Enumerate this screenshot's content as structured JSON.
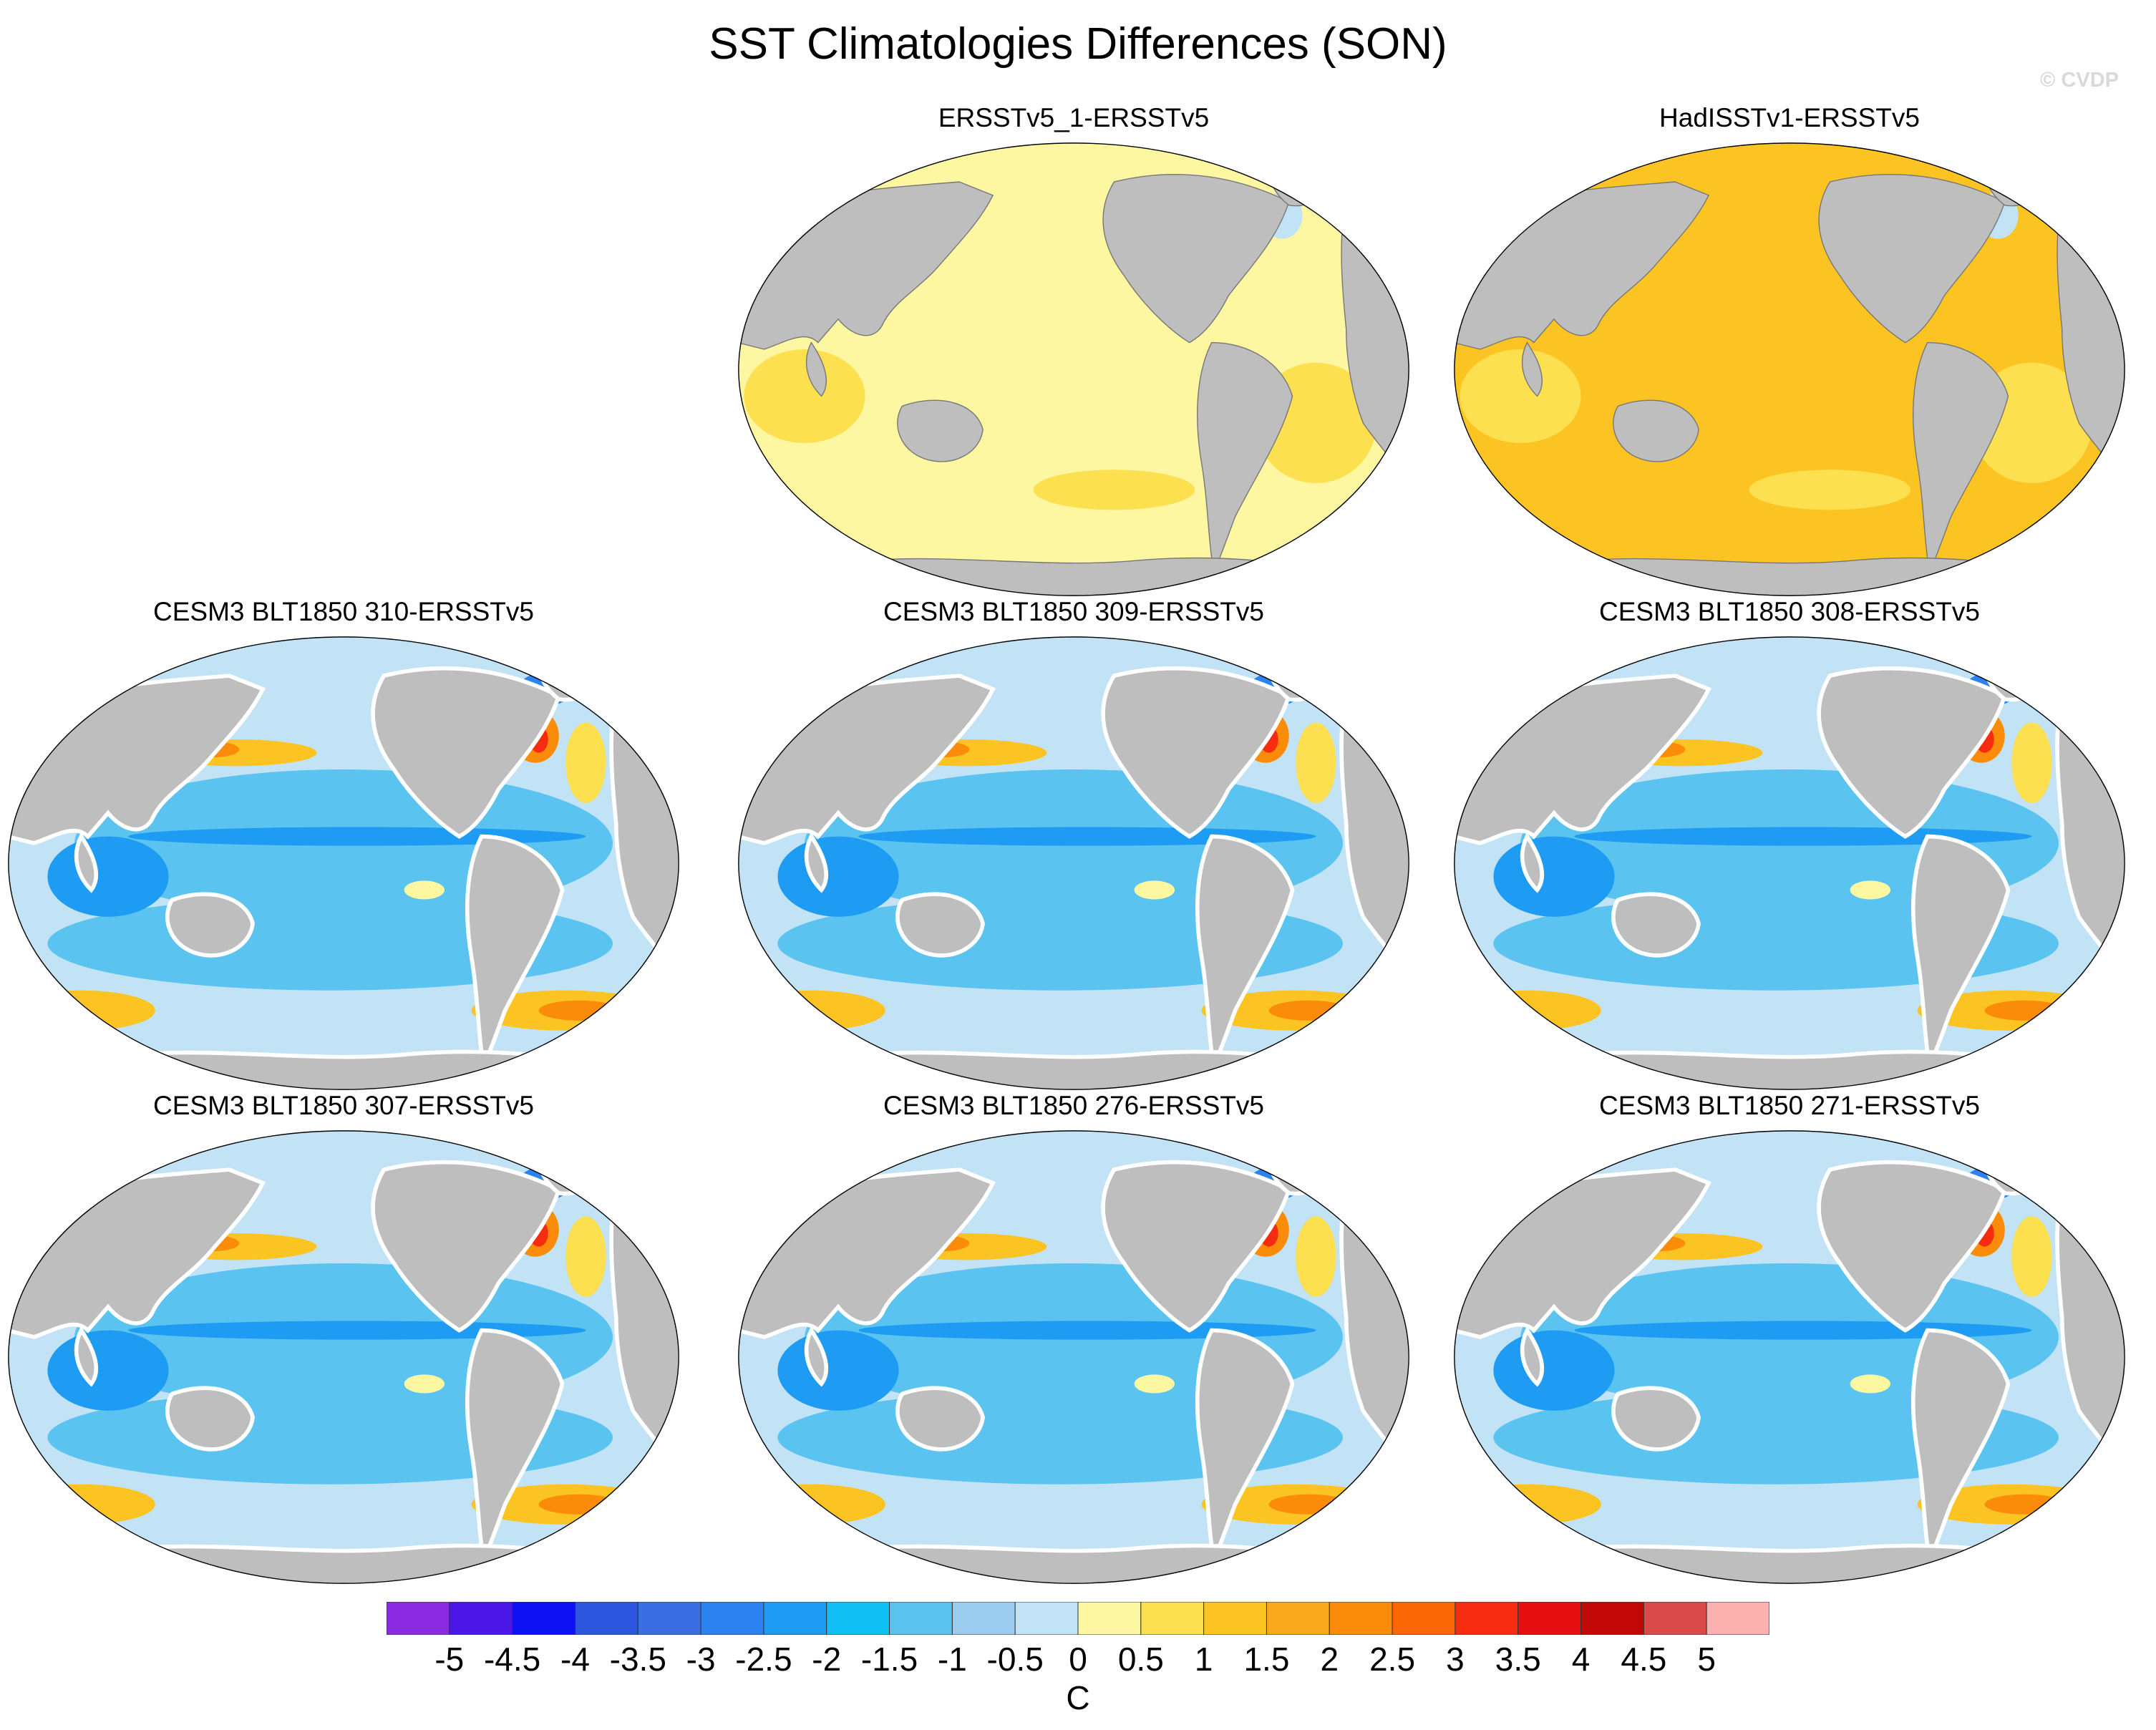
{
  "figure": {
    "title": "SST Climatologies Differences (SON)",
    "copyright": "© CVDP"
  },
  "panels": [
    {
      "title": "ERSSTv5_1-ERSSTv5",
      "style": "obs_small"
    },
    {
      "title": "HadISSTv1-ERSSTv5",
      "style": "obs_warm"
    },
    {
      "title": "CESM3 BLT1850 310-ERSSTv5",
      "style": "model"
    },
    {
      "title": "CESM3 BLT1850 309-ERSSTv5",
      "style": "model"
    },
    {
      "title": "CESM3 BLT1850 308-ERSSTv5",
      "style": "model"
    },
    {
      "title": "CESM3 BLT1850 307-ERSSTv5",
      "style": "model"
    },
    {
      "title": "CESM3 BLT1850 276-ERSSTv5",
      "style": "model"
    },
    {
      "title": "CESM3 BLT1850 271-ERSSTv5",
      "style": "model"
    }
  ],
  "colorbar": {
    "units": "C",
    "labels": [
      "-5",
      "-4.5",
      "-4",
      "-3.5",
      "-3",
      "-2.5",
      "-2",
      "-1.5",
      "-1",
      "-0.5",
      "0",
      "0.5",
      "1",
      "1.5",
      "2",
      "2.5",
      "3",
      "3.5",
      "4",
      "4.5",
      "5"
    ],
    "colors": [
      "#8a2be2",
      "#4b17e8",
      "#0f11f5",
      "#2e55dd",
      "#3a6ee3",
      "#2b82f0",
      "#1e9bf2",
      "#12bff5",
      "#5ac3ef",
      "#9ccdf0",
      "#c2e3f5",
      "#fdf7a2",
      "#fde04f",
      "#fcc422",
      "#f8a81a",
      "#fb8c0a",
      "#fa6505",
      "#f52c10",
      "#e50f0f",
      "#c30808",
      "#db4a4a",
      "#fcb0b0"
    ]
  },
  "map_colors": {
    "land": "#bebebe",
    "land_edge": "#777777",
    "coast_gap": "#ffffff"
  }
}
